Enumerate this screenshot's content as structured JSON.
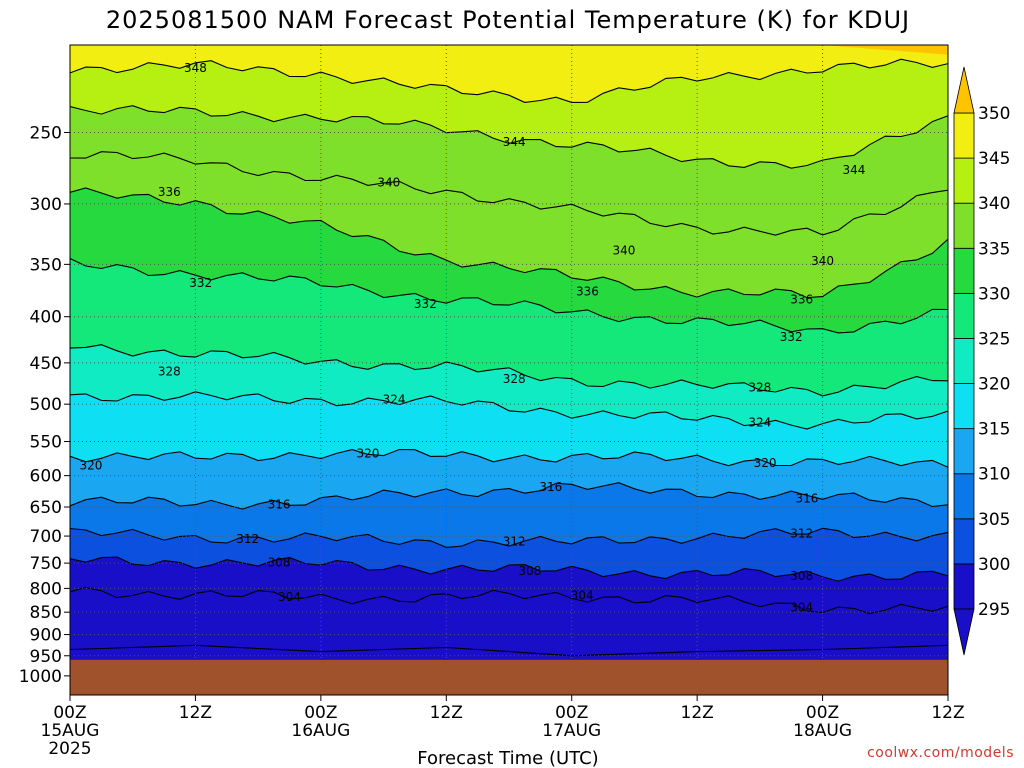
{
  "chart_data": {
    "type": "heatmap",
    "title": "2025081500 NAM Forecast Potential Temperature (K) for KDUJ",
    "xlabel": "Forecast Time (UTC)",
    "ylabel": "",
    "x_ticks": [
      {
        "hour": 0,
        "label": "00Z",
        "sub": "15AUG",
        "sub2": "2025"
      },
      {
        "hour": 12,
        "label": "12Z"
      },
      {
        "hour": 24,
        "label": "00Z",
        "sub": "16AUG"
      },
      {
        "hour": 36,
        "label": "12Z"
      },
      {
        "hour": 48,
        "label": "00Z",
        "sub": "17AUG"
      },
      {
        "hour": 60,
        "label": "12Z"
      },
      {
        "hour": 72,
        "label": "00Z",
        "sub": "18AUG"
      },
      {
        "hour": 84,
        "label": "12Z"
      }
    ],
    "xlim": [
      0,
      84
    ],
    "y_ticks": [
      250,
      300,
      350,
      400,
      450,
      500,
      550,
      600,
      650,
      700,
      750,
      800,
      850,
      900,
      950,
      1000
    ],
    "ylim_hpa": [
      1050,
      200
    ],
    "y_scale": "log-pressure",
    "grid": true,
    "surface_pressure_hpa": 955,
    "surface_color": "#a0522d",
    "colorbar": {
      "levels": [
        295,
        300,
        305,
        310,
        315,
        320,
        325,
        330,
        335,
        340,
        345,
        350
      ],
      "colors": [
        "#1a0fc9",
        "#1a0fc9",
        "#0c50e0",
        "#0b78ea",
        "#1aa6f0",
        "#0fdff2",
        "#10ebc4",
        "#14e87a",
        "#26d93e",
        "#7fe02c",
        "#b6f012",
        "#f3ee12",
        "#ffc400"
      ],
      "placement": "right"
    },
    "contour_interval_k": 4,
    "contour_levels": [
      304,
      308,
      312,
      316,
      320,
      324,
      328,
      332,
      336,
      340,
      344,
      348
    ],
    "contour_labels": [
      {
        "text": "348",
        "hour": 12,
        "hpa": 212
      },
      {
        "text": "344",
        "hour": 42.5,
        "hpa": 256
      },
      {
        "text": "344",
        "hour": 75,
        "hpa": 275
      },
      {
        "text": "340",
        "hour": 30.5,
        "hpa": 284
      },
      {
        "text": "340",
        "hour": 53,
        "hpa": 338
      },
      {
        "text": "340",
        "hour": 72,
        "hpa": 347
      },
      {
        "text": "336",
        "hour": 9.5,
        "hpa": 291
      },
      {
        "text": "336",
        "hour": 49.5,
        "hpa": 375
      },
      {
        "text": "336",
        "hour": 70,
        "hpa": 383
      },
      {
        "text": "332",
        "hour": 12.5,
        "hpa": 367
      },
      {
        "text": "332",
        "hour": 34,
        "hpa": 387
      },
      {
        "text": "332",
        "hour": 69,
        "hpa": 421
      },
      {
        "text": "328",
        "hour": 9.5,
        "hpa": 460
      },
      {
        "text": "328",
        "hour": 42.5,
        "hpa": 469
      },
      {
        "text": "328",
        "hour": 66,
        "hpa": 479
      },
      {
        "text": "324",
        "hour": 31,
        "hpa": 494
      },
      {
        "text": "324",
        "hour": 66,
        "hpa": 524
      },
      {
        "text": "320",
        "hour": 2,
        "hpa": 585
      },
      {
        "text": "320",
        "hour": 28.5,
        "hpa": 567
      },
      {
        "text": "320",
        "hour": 66.5,
        "hpa": 581
      },
      {
        "text": "316",
        "hour": 20,
        "hpa": 646
      },
      {
        "text": "316",
        "hour": 46,
        "hpa": 618
      },
      {
        "text": "316",
        "hour": 70.5,
        "hpa": 636
      },
      {
        "text": "312",
        "hour": 17,
        "hpa": 705
      },
      {
        "text": "312",
        "hour": 42.5,
        "hpa": 710
      },
      {
        "text": "312",
        "hour": 70,
        "hpa": 695
      },
      {
        "text": "308",
        "hour": 20,
        "hpa": 749
      },
      {
        "text": "308",
        "hour": 44,
        "hpa": 765
      },
      {
        "text": "308",
        "hour": 70,
        "hpa": 775
      },
      {
        "text": "304",
        "hour": 21,
        "hpa": 818
      },
      {
        "text": "304",
        "hour": 49,
        "hpa": 815
      },
      {
        "text": "304",
        "hour": 70,
        "hpa": 840
      }
    ],
    "isentrope_levels_hpa": [
      {
        "theta": 352,
        "hpa_by_12h": [
          200,
          200,
          200,
          200,
          200,
          198,
          200,
          205
        ]
      },
      {
        "theta": 348,
        "hpa_by_12h": [
          212,
          211,
          215,
          225,
          230,
          218,
          212,
          210
        ]
      },
      {
        "theta": 344,
        "hpa_by_12h": [
          235,
          238,
          240,
          248,
          258,
          268,
          272,
          240
        ]
      },
      {
        "theta": 340,
        "hpa_by_12h": [
          265,
          268,
          282,
          290,
          305,
          318,
          325,
          285
        ]
      },
      {
        "theta": 336,
        "hpa_by_12h": [
          292,
          298,
          318,
          345,
          362,
          375,
          380,
          330
        ]
      },
      {
        "theta": 332,
        "hpa_by_12h": [
          350,
          358,
          368,
          382,
          395,
          405,
          415,
          395
        ]
      },
      {
        "theta": 328,
        "hpa_by_12h": [
          430,
          440,
          448,
          455,
          470,
          478,
          482,
          470
        ]
      },
      {
        "theta": 324,
        "hpa_by_12h": [
          488,
          492,
          494,
          498,
          510,
          520,
          525,
          515
        ]
      },
      {
        "theta": 320,
        "hpa_by_12h": [
          570,
          574,
          566,
          570,
          572,
          575,
          580,
          582
        ]
      },
      {
        "theta": 316,
        "hpa_by_12h": [
          640,
          645,
          640,
          625,
          618,
          625,
          635,
          640
        ]
      },
      {
        "theta": 312,
        "hpa_by_12h": [
          695,
          702,
          705,
          710,
          712,
          700,
          695,
          698
        ]
      },
      {
        "theta": 308,
        "hpa_by_12h": [
          745,
          748,
          752,
          760,
          765,
          770,
          775,
          770
        ]
      },
      {
        "theta": 304,
        "hpa_by_12h": [
          805,
          812,
          820,
          818,
          815,
          825,
          840,
          845
        ]
      },
      {
        "theta": 300,
        "hpa_by_12h": [
          935,
          925,
          940,
          930,
          950,
          940,
          935,
          925
        ]
      }
    ]
  },
  "footer": {
    "credit": "coolwx.com/models"
  }
}
